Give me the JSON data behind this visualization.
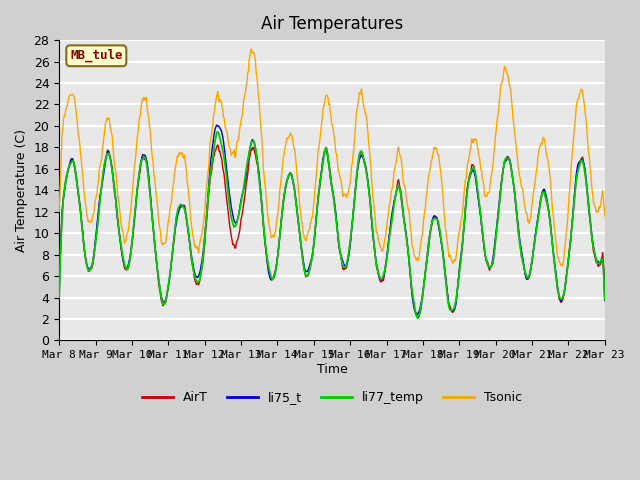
{
  "title": "Air Temperatures",
  "xlabel": "Time",
  "ylabel": "Air Temperature (C)",
  "ylim": [
    0,
    28
  ],
  "yticks": [
    0,
    2,
    4,
    6,
    8,
    10,
    12,
    14,
    16,
    18,
    20,
    22,
    24,
    26,
    28
  ],
  "xtick_labels": [
    "Mar 8",
    "Mar 9",
    "Mar 10",
    "Mar 11",
    "Mar 12",
    "Mar 13",
    "Mar 14",
    "Mar 15",
    "Mar 16",
    "Mar 17",
    "Mar 18",
    "Mar 19",
    "Mar 20",
    "Mar 21",
    "Mar 22",
    "Mar 23"
  ],
  "series_colors": {
    "AirT": "#cc0000",
    "li75_t": "#0000cc",
    "li77_temp": "#00cc00",
    "Tsonic": "#ffa500"
  },
  "legend_label": "MB_tule",
  "bg_color": "#e8e8e8",
  "grid_color": "#ffffff",
  "label_box_color": "#ffffcc",
  "label_box_edge": "#8b6914",
  "fig_bg_color": "#d0d0d0"
}
